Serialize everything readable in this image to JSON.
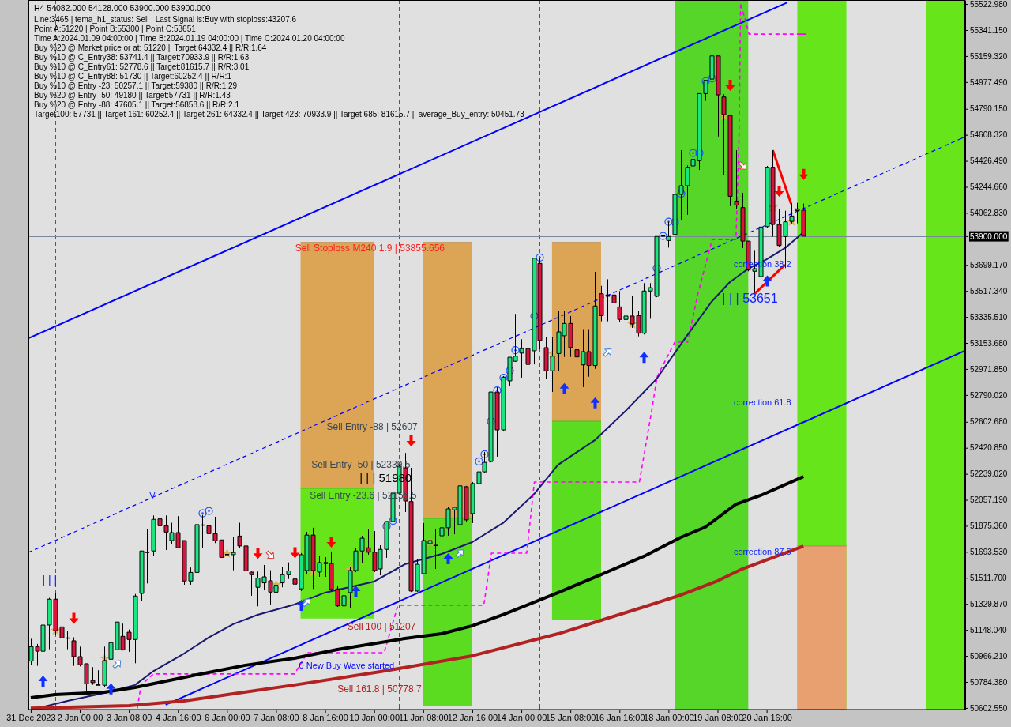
{
  "chart_data": {
    "type": "candlestick",
    "title": "H4 54082.000 54128.000 53900.000 53900.000",
    "annotations": [
      "Line:3465 | tema_h1_status: Sell | Last Signal is:Buy with stoploss:43207.6",
      "Point A:51220 | Point B:55300 | Point C:53651",
      "Time A:2024.01.09 04:00:00 | Time B:2024.01.19 04:00:00 | Time C:2024.01.20 04:00:00",
      "Buy %20 @ Market price or at: 51220 || Target:64332.4 || R/R:1.64",
      "Buy %10 @ C_Entry38: 53741.4 || Target:70933.9 || R/R:1.63",
      "Buy %10 @ C_Entry61: 52778.6 || Target:81615.7 || R/R:3.01",
      "Buy %10 @ C_Entry88: 51730 || Target:60252.4 || R/R:1",
      "Buy %10 @ Entry -23: 50257.1 || Target:59380 || R/R:1.29",
      "Buy %20 @ Entry -50: 49180 || Target:57731 || R/R:1.43",
      "Buy %20 @ Entry -88: 47605.1 || Target:56858.6 || R/R:2.1",
      "Target100: 57731 || Target 161: 60252.4 || Target 261: 64332.4 || Target 423: 70933.9 || Target 685: 81615.7 || average_Buy_entry: 50451.73",
      "Sell Stoploss M240 1.9 | 53855.656",
      "Sell Entry -88 | 52607",
      "Sell Entry -50 | 52339.5",
      "| | | 51980",
      "Sell Entry -23.6 | 52155.5",
      "Sell 100 | 51207",
      "0 New Buy Wave started",
      "Sell 161.8 | 50778.7",
      "correction 38.2",
      "| | | 53651",
      "correction 61.8",
      "correction 87.5",
      "V",
      "| | |"
    ],
    "x": [
      "2023-12-31T16:00",
      "2023-12-31T20:00",
      "2024-01-01T00:00",
      "2024-01-01T04:00",
      "2024-01-01T08:00",
      "2024-01-01T12:00",
      "2024-01-01T16:00",
      "2024-01-01T20:00",
      "2024-01-02T00:00",
      "2024-01-02T04:00",
      "2024-01-02T08:00",
      "2024-01-02T12:00",
      "2024-01-02T16:00",
      "2024-01-02T20:00",
      "2024-01-03T00:00",
      "2024-01-03T04:00",
      "2024-01-03T08:00",
      "2024-01-03T12:00",
      "2024-01-03T16:00",
      "2024-01-03T20:00",
      "2024-01-04T00:00",
      "2024-01-04T04:00",
      "2024-01-04T08:00",
      "2024-01-04T12:00",
      "2024-01-04T16:00",
      "2024-01-04T20:00",
      "2024-01-05T00:00",
      "2024-01-05T04:00",
      "2024-01-05T08:00",
      "2024-01-05T12:00",
      "2024-01-05T16:00",
      "2024-01-05T20:00",
      "2024-01-06T00:00",
      "2024-01-06T04:00",
      "2024-01-06T08:00",
      "2024-01-06T12:00",
      "2024-01-06T16:00",
      "2024-01-06T20:00",
      "2024-01-07T00:00",
      "2024-01-07T04:00",
      "2024-01-07T08:00",
      "2024-01-07T12:00",
      "2024-01-07T16:00",
      "2024-01-07T20:00",
      "2024-01-08T00:00",
      "2024-01-08T04:00",
      "2024-01-08T08:00",
      "2024-01-08T12:00",
      "2024-01-08T16:00",
      "2024-01-08T20:00",
      "2024-01-09T00:00",
      "2024-01-09T04:00",
      "2024-01-09T08:00",
      "2024-01-09T12:00",
      "2024-01-09T16:00",
      "2024-01-09T20:00",
      "2024-01-10T00:00",
      "2024-01-10T04:00",
      "2024-01-10T08:00",
      "2024-01-10T12:00",
      "2024-01-10T16:00",
      "2024-01-10T20:00",
      "2024-01-11T00:00",
      "2024-01-11T04:00",
      "2024-01-11T08:00",
      "2024-01-11T12:00",
      "2024-01-11T16:00",
      "2024-01-11T20:00",
      "2024-01-12T00:00",
      "2024-01-12T04:00",
      "2024-01-12T08:00",
      "2024-01-12T12:00",
      "2024-01-12T16:00",
      "2024-01-12T20:00",
      "2024-01-13T00:00",
      "2024-01-13T04:00",
      "2024-01-13T08:00",
      "2024-01-13T12:00",
      "2024-01-13T16:00",
      "2024-01-13T20:00",
      "2024-01-14T00:00",
      "2024-01-14T04:00",
      "2024-01-14T08:00",
      "2024-01-14T12:00",
      "2024-01-14T16:00",
      "2024-01-14T20:00",
      "2024-01-15T00:00",
      "2024-01-15T04:00",
      "2024-01-15T08:00",
      "2024-01-15T12:00",
      "2024-01-15T16:00",
      "2024-01-15T20:00",
      "2024-01-16T00:00",
      "2024-01-16T04:00",
      "2024-01-16T08:00",
      "2024-01-16T12:00",
      "2024-01-16T16:00",
      "2024-01-16T20:00",
      "2024-01-17T00:00",
      "2024-01-17T04:00",
      "2024-01-17T08:00",
      "2024-01-17T12:00",
      "2024-01-17T16:00",
      "2024-01-17T20:00",
      "2024-01-18T00:00",
      "2024-01-18T04:00",
      "2024-01-18T08:00",
      "2024-01-18T12:00",
      "2024-01-18T16:00",
      "2024-01-18T20:00",
      "2024-01-19T00:00",
      "2024-01-19T04:00",
      "2024-01-19T08:00",
      "2024-01-19T12:00",
      "2024-01-19T16:00",
      "2024-01-19T20:00",
      "2024-01-20T00:00",
      "2024-01-20T04:00",
      "2024-01-20T08:00",
      "2024-01-20T12:00",
      "2024-01-20T16:00",
      "2024-01-20T20:00",
      "2024-01-21T00:00",
      "2024-01-21T04:00",
      "2024-01-21T08:00",
      "2024-01-21T12:00",
      "2024-01-21T16:00"
    ],
    "ohlc": [
      [
        50930,
        51086,
        50902,
        51031
      ],
      [
        51031,
        51050,
        50897,
        50999
      ],
      [
        50999,
        51298,
        50912,
        51182
      ],
      [
        51182,
        51372,
        51013,
        51363
      ],
      [
        51363,
        51403,
        51114,
        51142
      ],
      [
        51169,
        51169,
        50958,
        51092
      ],
      [
        51092,
        51142,
        51013,
        51092
      ],
      [
        51072,
        51096,
        50897,
        50961
      ],
      [
        50961,
        51031,
        50893,
        50904
      ],
      [
        50912,
        50912,
        50718,
        50770
      ],
      [
        50794,
        50888,
        50764,
        50779
      ],
      [
        50764,
        50866,
        50761,
        50764
      ],
      [
        50761,
        51031,
        50746,
        50934
      ],
      [
        50943,
        51096,
        50847,
        51059
      ],
      [
        51009,
        51203,
        51009,
        51203
      ],
      [
        51103,
        51192,
        51004,
        51009
      ],
      [
        51132,
        51151,
        50995,
        51081
      ],
      [
        51081,
        51399,
        50915,
        51385
      ],
      [
        51403,
        51700,
        51350,
        51700
      ],
      [
        51692,
        51851,
        51473,
        51692
      ],
      [
        51700,
        51948,
        51666,
        51921
      ],
      [
        51924,
        51989,
        51749,
        51876
      ],
      [
        51876,
        51948,
        51707,
        51832
      ],
      [
        51773,
        51897,
        51749,
        51828
      ],
      [
        51828,
        51943,
        51718,
        51722
      ],
      [
        51773,
        51773,
        51464,
        51490
      ],
      [
        51490,
        51584,
        51464,
        51550
      ],
      [
        51550,
        51884,
        51523,
        51884
      ],
      [
        51882,
        51952,
        51718,
        51882
      ],
      [
        51876,
        52001,
        51718,
        51821
      ],
      [
        51821,
        51939,
        51755,
        51771
      ],
      [
        51777,
        51777,
        51652,
        51655
      ],
      [
        51676,
        51749,
        51578,
        51676
      ],
      [
        51674,
        51795,
        51565,
        51689
      ],
      [
        51804,
        51897,
        51722,
        51735
      ],
      [
        51735,
        51740,
        51449,
        51561
      ],
      [
        51552,
        51556,
        51387,
        51534
      ],
      [
        51446,
        51556,
        51313,
        51510
      ],
      [
        51477,
        51602,
        51427,
        51519
      ],
      [
        51492,
        51565,
        51326,
        51412
      ],
      [
        51412,
        51602,
        51400,
        51460
      ],
      [
        51477,
        51589,
        51446,
        51534
      ],
      [
        51534,
        51620,
        51504,
        51560
      ],
      [
        51504,
        51538,
        51412,
        51468
      ],
      [
        51435,
        51685,
        51420,
        51674
      ],
      [
        51563,
        51833,
        51541,
        51811
      ],
      [
        51811,
        51862,
        51435,
        51563
      ],
      [
        51552,
        51663,
        51519,
        51619
      ],
      [
        51619,
        51656,
        51519,
        51612
      ],
      [
        51612,
        51696,
        51420,
        51431
      ],
      [
        51435,
        51457,
        51309,
        51316
      ],
      [
        51316,
        51453,
        51220,
        51387
      ],
      [
        51409,
        51590,
        51298,
        51563
      ],
      [
        51563,
        51718,
        51552,
        51700
      ],
      [
        51700,
        51806,
        51618,
        51789
      ],
      [
        51722,
        51850,
        51674,
        51691
      ],
      [
        51691,
        51839,
        51552,
        51563
      ],
      [
        51574,
        51740,
        51530,
        51711
      ],
      [
        51711,
        51906,
        51652,
        51906
      ],
      [
        51906,
        52104,
        51828,
        52104
      ],
      [
        52104,
        52303,
        52093,
        52292
      ],
      [
        52281,
        52385,
        51972,
        52049
      ],
      [
        52045,
        52281,
        51413,
        51420
      ],
      [
        51420,
        51641,
        51413,
        51607
      ],
      [
        51541,
        51895,
        51541,
        51773
      ],
      [
        51751,
        51895,
        51740,
        51773
      ],
      [
        51740,
        51850,
        51574,
        51740
      ],
      [
        51806,
        51917,
        51696,
        51862
      ],
      [
        51862,
        52005,
        51806,
        51994
      ],
      [
        51987,
        52005,
        51817,
        52005
      ],
      [
        51884,
        52204,
        51873,
        52155
      ],
      [
        52149,
        52155,
        51906,
        51917
      ],
      [
        51961,
        52182,
        51895,
        52171
      ],
      [
        52171,
        52359,
        52138,
        52253
      ],
      [
        52253,
        52392,
        52248,
        52319
      ],
      [
        52325,
        52811,
        52319,
        52811
      ],
      [
        52811,
        52844,
        52359,
        52546
      ],
      [
        52546,
        52922,
        52535,
        52915
      ],
      [
        52889,
        53054,
        52856,
        53054
      ],
      [
        53026,
        53357,
        53021,
        53061
      ],
      [
        53083,
        53180,
        52911,
        53114
      ],
      [
        53114,
        53121,
        52911,
        53004
      ],
      [
        53099,
        53746,
        53004,
        53746
      ],
      [
        53710,
        53746,
        53110,
        53171
      ],
      [
        53121,
        53198,
        52900,
        52959
      ],
      [
        52959,
        53198,
        52811,
        53061
      ],
      [
        53080,
        53379,
        52955,
        53231
      ],
      [
        53204,
        53379,
        53056,
        53290
      ],
      [
        53290,
        53342,
        53056,
        53121
      ],
      [
        53106,
        53204,
        52937,
        53056
      ],
      [
        53001,
        53250,
        52845,
        53093
      ],
      [
        53093,
        53250,
        52918,
        52996
      ],
      [
        52996,
        53651,
        52973,
        53412
      ],
      [
        53498,
        53553,
        53305,
        53345
      ],
      [
        53489,
        53599,
        53305,
        53480
      ],
      [
        53489,
        53553,
        53378,
        53434
      ],
      [
        53406,
        53516,
        53299,
        53318
      ],
      [
        53318,
        53434,
        53259,
        53342
      ],
      [
        53342,
        53485,
        53259,
        53286
      ],
      [
        53345,
        53379,
        53200,
        53222
      ],
      [
        53222,
        53572,
        53213,
        53517
      ],
      [
        53517,
        53572,
        53323,
        53540
      ],
      [
        53480,
        53898,
        53474,
        53898
      ],
      [
        53903,
        54001,
        53875,
        53903
      ],
      [
        53870,
        54001,
        53820,
        53898
      ],
      [
        53912,
        54192,
        53857,
        54192
      ],
      [
        54192,
        54501,
        54014,
        54253
      ],
      [
        54253,
        54395,
        54050,
        54382
      ],
      [
        54391,
        54492,
        54277,
        54437
      ],
      [
        54428,
        54897,
        54363,
        54897
      ],
      [
        54897,
        54989,
        54847,
        54989
      ],
      [
        54998,
        55300,
        54851,
        55160
      ],
      [
        55160,
        55160,
        54597,
        54888
      ],
      [
        54873,
        54892,
        54326,
        54750
      ],
      [
        54744,
        54744,
        54111,
        54179
      ],
      [
        54146,
        54501,
        54093,
        54118
      ],
      [
        54100,
        54203,
        53817,
        53866
      ],
      [
        53866,
        53866,
        53655,
        53664
      ],
      [
        53655,
        53798,
        53504,
        53673
      ],
      [
        53618,
        53967,
        53603,
        53964
      ],
      [
        53967,
        54391,
        53958,
        54382
      ],
      [
        54382,
        54501,
        53897,
        53982
      ],
      [
        53982,
        54093,
        53824,
        53835
      ],
      [
        53897,
        54078,
        53677,
        54001
      ],
      [
        54004,
        54130,
        53990,
        54041
      ],
      [
        54091,
        54133,
        53990,
        54078
      ],
      [
        54082,
        54128,
        53900,
        53900
      ]
    ],
    "series": [
      {
        "type": "line",
        "x": [
          "2024-01-08T00:00",
          "2024-01-10T00:00"
        ],
        "values": [
          53856,
          53856
        ],
        "lower": [
          52138,
          52138
        ],
        "upper": [
          53856,
          53856
        ],
        "color": "#b88a48"
      },
      {
        "type": "line",
        "x": [
          "2024-01-08T00:00",
          "2024-01-10T00:00"
        ],
        "values": [
          52138,
          52138
        ],
        "lower": [
          51227,
          51227
        ],
        "upper": [
          52138,
          52138
        ],
        "color": "#55c016"
      },
      {
        "type": "line",
        "x": [
          "2024-01-11T08:00",
          "2024-01-12T16:00"
        ],
        "values": [
          53856,
          53856
        ],
        "lower": [
          51928,
          51928
        ],
        "upper": [
          53856,
          53856
        ],
        "color": "#b88a48"
      },
      {
        "type": "line",
        "x": [
          "2024-01-11T08:00",
          "2024-01-12T16:00"
        ],
        "values": [
          51928,
          51928
        ],
        "lower": [
          50614,
          50614
        ],
        "upper": [
          51928,
          51928
        ],
        "color": "#4db81c"
      },
      {
        "type": "line",
        "x": [
          "2024-01-14T20:00",
          "2024-01-16T04:00"
        ],
        "values": [
          53856,
          53856
        ],
        "lower": [
          52607,
          52607
        ],
        "upper": [
          53856,
          53856
        ],
        "color": "#b88a48"
      },
      {
        "type": "line",
        "x": [
          "2024-01-14T20:00",
          "2024-01-16T04:00"
        ],
        "values": [
          52607,
          52607
        ],
        "lower": [
          51216,
          51216
        ],
        "upper": [
          52607,
          52607
        ],
        "color": "#4db81c"
      },
      {
        "type": "line",
        "x": [
          "2024-01-21T12:00",
          "2024-01-22T20:00"
        ],
        "values": [
          51735,
          51735
        ],
        "lower": [
          50595,
          50595
        ],
        "upper": [
          51735,
          51735
        ],
        "color": "#c2865e"
      },
      {
        "type": "line",
        "x": [
          "2023-12-31T14:30",
          "2024-01-21T05:30"
        ],
        "values": [
          53187,
          55534
        ],
        "color": "#0000ff"
      },
      {
        "type": "line",
        "x": [
          "2024-01-04T08:00",
          "2024-01-26T01:30"
        ],
        "values": [
          50625,
          53101
        ],
        "color": "#0000ff"
      },
      {
        "type": "line",
        "x": [
          "2023-12-31T14:30",
          "2024-01-26T01:30"
        ],
        "values": [
          51690,
          54595
        ],
        "color": "#0000ff",
        "line_style": "dashed"
      },
      {
        "type": "line",
        "x": [
          "2024-01-03T13:30",
          "2024-01-03T16:00",
          "2024-01-04T00:00",
          "2024-01-07T20:00",
          "2024-01-08T04:30",
          "2024-01-10T06:30",
          "2024-01-10T15:30",
          "2024-01-12T23:30",
          "2024-01-13T04:30",
          "2024-01-14T03:30",
          "2024-01-14T08:30",
          "2024-01-17T05:00",
          "2024-01-17T13:00",
          "2024-01-17T16:30",
          "2024-01-18T04:00",
          "2024-01-18T12:30",
          "2024-01-18T19:00",
          "2024-01-19T04:30",
          "2024-01-19T20:00",
          "2024-01-19T22:00",
          "2024-01-19T23:00",
          "2024-01-20T04:30",
          "2024-01-21T18:00"
        ],
        "values": [
          50600,
          50763,
          50840,
          50840,
          50989,
          50989,
          51320,
          51320,
          51685,
          51685,
          52182,
          52182,
          52679,
          52916,
          53159,
          53159,
          53491,
          53877,
          53877,
          54601,
          55530,
          55313,
          55313
        ],
        "color": "#ff00ff",
        "line_style": "dashed"
      },
      {
        "type": "line",
        "x": [
          "2023-12-31T20:00",
          "2024-01-01T16:00",
          "2024-01-02T16:00",
          "2024-01-03T12:00",
          "2024-01-04T00:00",
          "2024-01-04T20:00",
          "2024-01-05T12:00",
          "2024-01-06T04:00",
          "2024-01-06T20:00",
          "2024-01-07T20:00",
          "2024-01-08T16:00",
          "2024-01-10T00:00",
          "2024-01-10T20:00",
          "2024-01-11T20:00",
          "2024-01-12T16:00",
          "2024-01-13T12:00",
          "2024-01-14T08:00",
          "2024-01-15T00:00",
          "2024-01-16T00:00",
          "2024-01-16T20:00",
          "2024-01-17T16:00",
          "2024-01-18T12:00",
          "2024-01-19T04:00",
          "2024-01-19T16:00",
          "2024-01-20T04:00",
          "2024-01-20T16:00",
          "2024-01-21T04:00",
          "2024-01-21T16:00"
        ],
        "values": [
          50600,
          50652,
          50707,
          50763,
          50860,
          50983,
          51094,
          51188,
          51254,
          51326,
          51409,
          51486,
          51607,
          51679,
          51762,
          51895,
          52094,
          52303,
          52475,
          52679,
          52900,
          53204,
          53441,
          53579,
          53673,
          53739,
          53817,
          53927
        ],
        "color": "#191970"
      },
      {
        "type": "line",
        "x": [
          "2023-12-31T16:00",
          "2024-01-01T08:00",
          "2024-01-02T16:00",
          "2024-01-03T12:00",
          "2024-01-04T08:00",
          "2024-01-05T12:00",
          "2024-01-06T12:00",
          "2024-01-07T20:00",
          "2024-01-09T00:00",
          "2024-01-10T20:00",
          "2024-01-11T20:00",
          "2024-01-12T16:00",
          "2024-01-13T12:00",
          "2024-01-15T00:00",
          "2024-01-16T04:00",
          "2024-01-17T08:00",
          "2024-01-18T08:00",
          "2024-01-19T00:00",
          "2024-01-19T20:00",
          "2024-01-20T12:00",
          "2024-01-21T16:00"
        ],
        "values": [
          50674,
          50696,
          50713,
          50746,
          50790,
          50851,
          50901,
          50950,
          51011,
          51088,
          51121,
          51177,
          51254,
          51409,
          51535,
          51663,
          51795,
          51867,
          52027,
          52088,
          52220
        ],
        "color": "#000000"
      },
      {
        "type": "line",
        "x": [
          "2023-12-31T16:00",
          "2024-01-03T08:00",
          "2024-01-04T20:00",
          "2024-01-06T04:00",
          "2024-01-07T20:00",
          "2024-01-10T04:00",
          "2024-01-12T16:00",
          "2024-01-15T00:00",
          "2024-01-16T04:00",
          "2024-01-17T08:00",
          "2024-01-18T08:00",
          "2024-01-19T08:00",
          "2024-01-20T00:00",
          "2024-01-21T16:00"
        ],
        "values": [
          50600,
          50619,
          50652,
          50702,
          50763,
          50856,
          50967,
          51121,
          51215,
          51309,
          51392,
          51491,
          51574,
          51734
        ],
        "color": "#b22222"
      },
      {
        "type": "line",
        "x": [
          "2024-01-20T20:00",
          "2024-01-21T08:00"
        ],
        "values": [
          54501,
          54126
        ],
        "color": "#ff0000"
      },
      {
        "type": "line",
        "x": [
          "2024-01-20T08:00",
          "2024-01-21T04:00"
        ],
        "values": [
          53496,
          53701
        ],
        "color": "#ff0000"
      }
    ],
    "xlim": [
      "2023-12-31T14:30",
      "2024-01-26T01:30"
    ],
    "xticks": [
      {
        "value": "2023-12-31T16:00",
        "label": "31 Dec 2023"
      },
      {
        "value": "2024-01-02T00:00",
        "label": "2 Jan 00:00"
      },
      {
        "value": "2024-01-03T08:00",
        "label": "3 Jan 08:00"
      },
      {
        "value": "2024-01-04T16:00",
        "label": "4 Jan 16:00"
      },
      {
        "value": "2024-01-06T00:00",
        "label": "6 Jan 00:00"
      },
      {
        "value": "2024-01-07T08:00",
        "label": "7 Jan 08:00"
      },
      {
        "value": "2024-01-08T16:00",
        "label": "8 Jan 16:00"
      },
      {
        "value": "2024-01-10T00:00",
        "label": "10 Jan 00:00"
      },
      {
        "value": "2024-01-11T08:00",
        "label": "11 Jan 08:00"
      },
      {
        "value": "2024-01-12T16:00",
        "label": "12 Jan 16:00"
      },
      {
        "value": "2024-01-14T00:00",
        "label": "14 Jan 00:00"
      },
      {
        "value": "2024-01-15T08:00",
        "label": "15 Jan 08:00"
      },
      {
        "value": "2024-01-16T16:00",
        "label": "16 Jan 16:00"
      },
      {
        "value": "2024-01-18T00:00",
        "label": "18 Jan 00:00"
      },
      {
        "value": "2024-01-19T08:00",
        "label": "19 Jan 08:00"
      },
      {
        "value": "2024-01-20T16:00",
        "label": "20 Jan 16:00"
      }
    ],
    "ylim": [
      50591,
      55551
    ],
    "yticks": [
      {
        "value": 55522.98,
        "label": "55522.980"
      },
      {
        "value": 55341.15,
        "label": "55341.150"
      },
      {
        "value": 55159.32,
        "label": "55159.320"
      },
      {
        "value": 54977.49,
        "label": "54977.490"
      },
      {
        "value": 54790.15,
        "label": "54790.150"
      },
      {
        "value": 54608.32,
        "label": "54608.320"
      },
      {
        "value": 54426.49,
        "label": "54426.490"
      },
      {
        "value": 54244.66,
        "label": "54244.660"
      },
      {
        "value": 54062.83,
        "label": "54062.830"
      },
      {
        "value": 53900,
        "label": "53900.000"
      },
      {
        "value": 53699.17,
        "label": "53699.170"
      },
      {
        "value": 53517.34,
        "label": "53517.340"
      },
      {
        "value": 53335.51,
        "label": "53335.510"
      },
      {
        "value": 53153.68,
        "label": "53153.680"
      },
      {
        "value": 52971.85,
        "label": "52971.850"
      },
      {
        "value": 52790.02,
        "label": "52790.020"
      },
      {
        "value": 52602.68,
        "label": "52602.680"
      },
      {
        "value": 52420.85,
        "label": "52420.850"
      },
      {
        "value": 52239.02,
        "label": "52239.020"
      },
      {
        "value": 52057.19,
        "label": "52057.190"
      },
      {
        "value": 51875.36,
        "label": "51875.360"
      },
      {
        "value": 51693.53,
        "label": "51693.530"
      },
      {
        "value": 51511.7,
        "label": "51511.700"
      },
      {
        "value": 51329.87,
        "label": "51329.870"
      },
      {
        "value": 51148.04,
        "label": "51148.040"
      },
      {
        "value": 50966.21,
        "label": "50966.210"
      },
      {
        "value": 50784.38,
        "label": "50784.380"
      },
      {
        "value": 50602.55,
        "label": "50602.550"
      }
    ],
    "ref_lines": [
      {
        "axis": "x",
        "value": "2024-01-01T08:00",
        "color": "#c71585",
        "line_style": "dashed"
      },
      {
        "axis": "x",
        "value": "2024-01-05T12:00",
        "color": "#c71585",
        "line_style": "dashed"
      },
      {
        "axis": "x",
        "value": "2024-01-09T04:00",
        "color": "#f4f4f4",
        "line_style": "dashed"
      },
      {
        "axis": "x",
        "value": "2024-01-10T16:00",
        "color": "#c71585",
        "line_style": "dashed"
      },
      {
        "axis": "x",
        "value": "2024-01-14T12:00",
        "color": "#c71585",
        "line_style": "dashed"
      },
      {
        "axis": "x",
        "value": "2024-01-19T04:00",
        "color": "#c71585",
        "line_style": "dashed"
      },
      {
        "axis": "y",
        "value": 53900,
        "color": "#778899",
        "line_style": "solid"
      }
    ],
    "bands": [
      {
        "axis": "x",
        "from": "2024-01-18T04:00",
        "to": "2024-01-20T04:00",
        "color": "#55d628"
      },
      {
        "axis": "x",
        "from": "2024-01-21T12:00",
        "to": "2024-01-22T20:00",
        "color": "#66e61a"
      },
      {
        "axis": "x",
        "from": "2024-01-25T00:00",
        "to": "2024-01-26T01:30",
        "color": "#66e61a"
      }
    ]
  }
}
